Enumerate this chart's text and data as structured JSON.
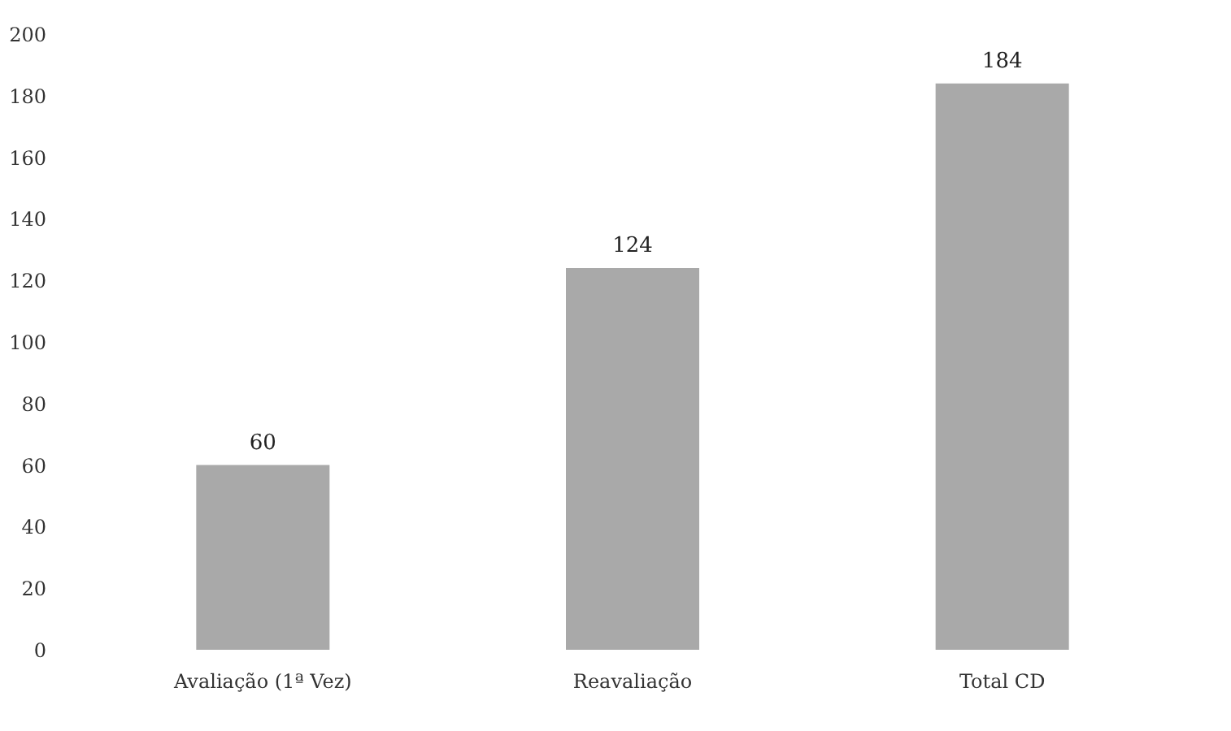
{
  "chart_data": {
    "type": "bar",
    "categories": [
      "Avaliação (1ª Vez)",
      "Reavaliação",
      "Total CD"
    ],
    "values": [
      60,
      124,
      184
    ],
    "color": "#a9a9a9",
    "ylim": [
      0,
      200
    ],
    "yticks": [
      0,
      20,
      40,
      60,
      80,
      100,
      120,
      140,
      160,
      180,
      200
    ],
    "grid": false,
    "data_labels": true
  }
}
